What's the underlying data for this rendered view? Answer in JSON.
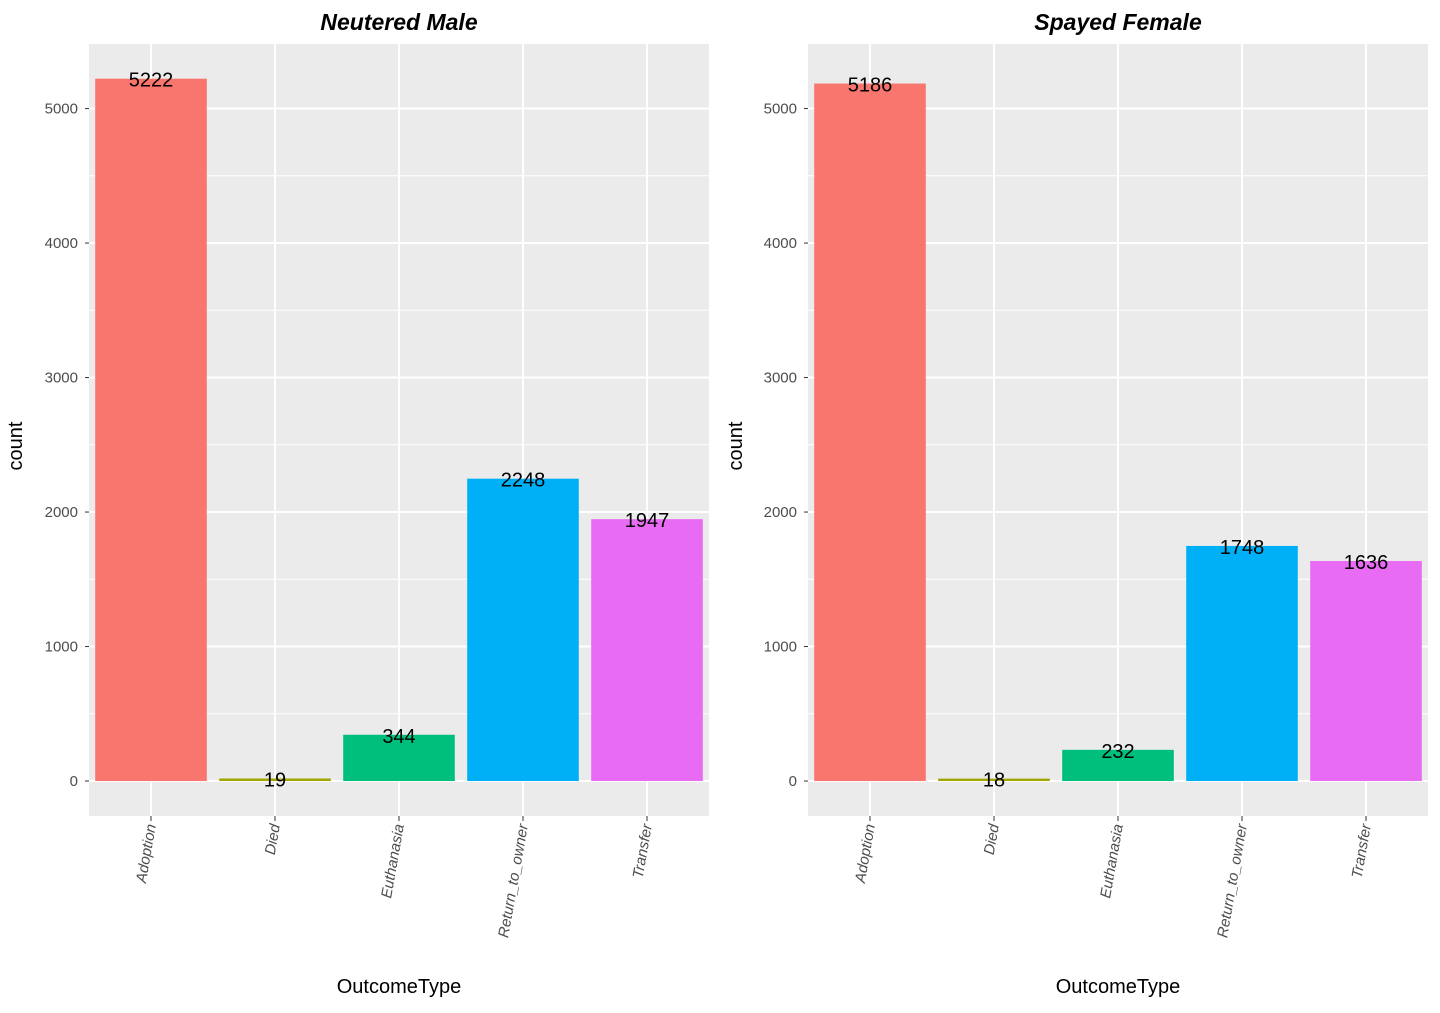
{
  "chart_data": [
    {
      "type": "bar",
      "title": "Neutered Male",
      "xlabel": "OutcomeType",
      "ylabel": "count",
      "categories": [
        "Adoption",
        "Died",
        "Euthanasia",
        "Return_to_owner",
        "Transfer"
      ],
      "values": [
        5222,
        19,
        344,
        2248,
        1947
      ],
      "data_labels": [
        "5222",
        "19",
        "344",
        "2248",
        "1947"
      ],
      "yticks": [
        0,
        1000,
        2000,
        3000,
        4000,
        5000
      ],
      "ytick_labels": [
        "0",
        "1000",
        "2000",
        "3000",
        "4000",
        "5000"
      ],
      "ylim": [
        -260,
        5480
      ],
      "colors": [
        "#F8766D",
        "#A3A500",
        "#00BF7D",
        "#00B0F6",
        "#E76BF3"
      ],
      "grid": true,
      "legend": "none"
    },
    {
      "type": "bar",
      "title": "Spayed Female",
      "xlabel": "OutcomeType",
      "ylabel": "count",
      "categories": [
        "Adoption",
        "Died",
        "Euthanasia",
        "Return_to_owner",
        "Transfer"
      ],
      "values": [
        5186,
        18,
        232,
        1748,
        1636
      ],
      "data_labels": [
        "5186",
        "18",
        "232",
        "1748",
        "1636"
      ],
      "yticks": [
        0,
        1000,
        2000,
        3000,
        4000,
        5000
      ],
      "ytick_labels": [
        "0",
        "1000",
        "2000",
        "3000",
        "4000",
        "5000"
      ],
      "ylim": [
        -260,
        5480
      ],
      "colors": [
        "#F8766D",
        "#A3A500",
        "#00BF7D",
        "#00B0F6",
        "#E76BF3"
      ],
      "grid": true,
      "legend": "none"
    }
  ]
}
